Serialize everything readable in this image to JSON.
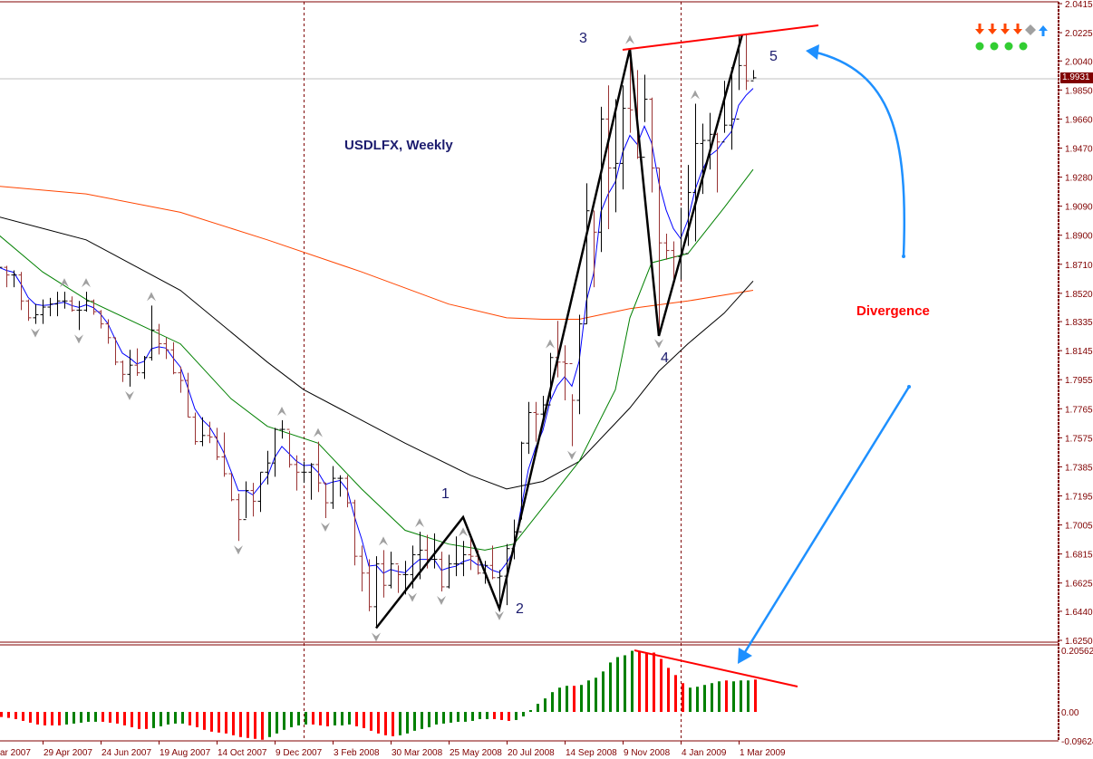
{
  "chart_data": {
    "type": "ohlc",
    "title": "USDLFX, Weekly",
    "annotation": "Divergence",
    "current_price": "1.9931",
    "price_range": [
      1.625,
      2.0415
    ],
    "price_ticks": [
      "2.0415",
      "2.0225",
      "2.0040",
      "1.9850",
      "1.9660",
      "1.9470",
      "1.9280",
      "1.9090",
      "1.8900",
      "1.8710",
      "1.8520",
      "1.8335",
      "1.8145",
      "1.7955",
      "1.7765",
      "1.7575",
      "1.7385",
      "1.7195",
      "1.7005",
      "1.6815",
      "1.6625",
      "1.6440",
      "1.6250"
    ],
    "x_labels": [
      {
        "i": 0,
        "label": "ar 2007"
      },
      {
        "i": 6,
        "label": "29 Apr 2007"
      },
      {
        "i": 14,
        "label": "24 Jun 2007"
      },
      {
        "i": 22,
        "label": "19 Aug 2007"
      },
      {
        "i": 30,
        "label": "14 Oct 2007"
      },
      {
        "i": 38,
        "label": "9 Dec 2007"
      },
      {
        "i": 46,
        "label": "3 Feb 2008"
      },
      {
        "i": 54,
        "label": "30 Mar 2008"
      },
      {
        "i": 62,
        "label": "25 May 2008"
      },
      {
        "i": 70,
        "label": "20 Jul 2008"
      },
      {
        "i": 78,
        "label": "14 Sep 2008"
      },
      {
        "i": 86,
        "label": "9 Nov 2008"
      },
      {
        "i": 94,
        "label": "4 Jan 2009"
      },
      {
        "i": 102,
        "label": "1 Mar 2009"
      }
    ],
    "separators": [
      42,
      94
    ],
    "bars": {
      "high": [
        1.872,
        1.87,
        1.867,
        1.866,
        1.848,
        1.845,
        1.848,
        1.849,
        1.853,
        1.853,
        1.85,
        1.847,
        1.853,
        1.848,
        1.841,
        1.835,
        1.823,
        1.808,
        1.815,
        1.816,
        1.811,
        1.844,
        1.832,
        1.823,
        1.82,
        1.804,
        1.8,
        1.774,
        1.771,
        1.768,
        1.764,
        1.761,
        1.734,
        1.721,
        1.729,
        1.728,
        1.735,
        1.749,
        1.764,
        1.769,
        1.762,
        1.746,
        1.742,
        1.741,
        1.755,
        1.728,
        1.739,
        1.733,
        1.733,
        1.717,
        1.687,
        1.678,
        1.68,
        1.684,
        1.683,
        1.674,
        1.677,
        1.687,
        1.696,
        1.694,
        1.695,
        1.683,
        1.681,
        1.693,
        1.69,
        1.693,
        1.684,
        1.677,
        1.687,
        1.671,
        1.688,
        1.704,
        1.755,
        1.781,
        1.781,
        1.785,
        1.813,
        1.834,
        1.818,
        1.786,
        1.838,
        1.924,
        1.906,
        1.974,
        1.988,
        1.979,
        1.988,
        2.012,
        1.998,
        1.995,
        1.98,
        1.934,
        1.891,
        1.886,
        1.908,
        1.936,
        1.976,
        1.963,
        1.97,
        1.957,
        1.991,
        2.0,
        2.021,
        2.022,
        1.998
      ],
      "low": [
        1.864,
        1.856,
        1.856,
        1.841,
        1.834,
        1.832,
        1.832,
        1.837,
        1.837,
        1.842,
        1.84,
        1.828,
        1.84,
        1.838,
        1.829,
        1.819,
        1.805,
        1.794,
        1.791,
        1.798,
        1.796,
        1.808,
        1.812,
        1.809,
        1.799,
        1.787,
        1.771,
        1.753,
        1.752,
        1.754,
        1.743,
        1.732,
        1.716,
        1.69,
        1.705,
        1.706,
        1.709,
        1.727,
        1.732,
        1.757,
        1.738,
        1.723,
        1.728,
        1.717,
        1.722,
        1.705,
        1.711,
        1.719,
        1.712,
        1.674,
        1.657,
        1.644,
        1.633,
        1.653,
        1.659,
        1.656,
        1.655,
        1.659,
        1.665,
        1.672,
        1.672,
        1.657,
        1.659,
        1.667,
        1.667,
        1.671,
        1.668,
        1.662,
        1.665,
        1.647,
        1.648,
        1.678,
        1.704,
        1.747,
        1.755,
        1.767,
        1.783,
        1.797,
        1.782,
        1.752,
        1.773,
        1.832,
        1.856,
        1.879,
        1.894,
        1.905,
        1.92,
        1.957,
        1.94,
        1.964,
        1.918,
        1.825,
        1.874,
        1.86,
        1.861,
        1.883,
        1.886,
        1.917,
        1.933,
        1.918,
        1.957,
        1.946,
        1.985,
        1.985,
        1.992
      ],
      "close": [
        1.869,
        1.864,
        1.864,
        1.847,
        1.836,
        1.838,
        1.843,
        1.845,
        1.847,
        1.847,
        1.841,
        1.841,
        1.847,
        1.84,
        1.832,
        1.823,
        1.807,
        1.799,
        1.805,
        1.8,
        1.81,
        1.828,
        1.819,
        1.815,
        1.8,
        1.795,
        1.771,
        1.755,
        1.759,
        1.758,
        1.745,
        1.734,
        1.717,
        1.704,
        1.723,
        1.716,
        1.735,
        1.741,
        1.763,
        1.763,
        1.74,
        1.735,
        1.735,
        1.74,
        1.728,
        1.715,
        1.731,
        1.731,
        1.715,
        1.68,
        1.669,
        1.647,
        1.675,
        1.661,
        1.675,
        1.668,
        1.668,
        1.681,
        1.684,
        1.678,
        1.678,
        1.66,
        1.675,
        1.675,
        1.681,
        1.68,
        1.669,
        1.674,
        1.666,
        1.667,
        1.685,
        1.696,
        1.754,
        1.774,
        1.773,
        1.779,
        1.81,
        1.807,
        1.806,
        1.782,
        1.832,
        1.906,
        1.892,
        1.966,
        1.934,
        1.937,
        1.973,
        1.972,
        1.941,
        1.979,
        1.934,
        1.885,
        1.88,
        1.876,
        1.878,
        1.918,
        1.95,
        1.952,
        1.956,
        1.951,
        1.962,
        1.966,
        2.001,
        1.991,
        1.993
      ]
    },
    "moving_averages": {
      "orange": [
        [
          0,
          1.922
        ],
        [
          12,
          1.917
        ],
        [
          25,
          1.905
        ],
        [
          37,
          1.887
        ],
        [
          50,
          1.866
        ],
        [
          62,
          1.845
        ],
        [
          70,
          1.836
        ],
        [
          75,
          1.835
        ],
        [
          80,
          1.835
        ],
        [
          87,
          1.842
        ],
        [
          95,
          1.847
        ],
        [
          104,
          1.854
        ]
      ],
      "black": [
        [
          0,
          1.902
        ],
        [
          12,
          1.887
        ],
        [
          25,
          1.854
        ],
        [
          37,
          1.807
        ],
        [
          42,
          1.789
        ],
        [
          56,
          1.754
        ],
        [
          65,
          1.733
        ],
        [
          70,
          1.724
        ],
        [
          75,
          1.729
        ],
        [
          80,
          1.742
        ],
        [
          87,
          1.777
        ],
        [
          91,
          1.801
        ],
        [
          95,
          1.819
        ],
        [
          100,
          1.839
        ],
        [
          104,
          1.86
        ]
      ],
      "green": [
        [
          0,
          1.89
        ],
        [
          6,
          1.866
        ],
        [
          12,
          1.848
        ],
        [
          25,
          1.819
        ],
        [
          32,
          1.783
        ],
        [
          37,
          1.765
        ],
        [
          44,
          1.754
        ],
        [
          50,
          1.724
        ],
        [
          56,
          1.697
        ],
        [
          62,
          1.688
        ],
        [
          67,
          1.684
        ],
        [
          71,
          1.688
        ],
        [
          75,
          1.712
        ],
        [
          80,
          1.742
        ],
        [
          85,
          1.789
        ],
        [
          87,
          1.836
        ],
        [
          90,
          1.872
        ],
        [
          95,
          1.878
        ],
        [
          100,
          1.908
        ],
        [
          104,
          1.933
        ]
      ],
      "blue_ema_period": 4
    },
    "fractals": {
      "up": [
        9,
        12,
        21,
        39,
        44,
        53,
        58,
        64,
        76,
        87,
        96
      ],
      "down": [
        5,
        11,
        18,
        33,
        45,
        52,
        57,
        61,
        69,
        79,
        91
      ]
    },
    "waves": [
      {
        "label": "",
        "i": 52,
        "p": 1.633
      },
      {
        "label": "1",
        "i": 64,
        "p": 1.7056
      },
      {
        "label": "2",
        "i": 69,
        "p": 1.6457
      },
      {
        "label": "3",
        "i": 87,
        "p": 2.0119
      },
      {
        "label": "4",
        "i": 91,
        "p": 1.8241
      },
      {
        "label": "5",
        "i": 102.5,
        "p": 2.0214
      }
    ],
    "price_trendline": [
      [
        86,
        2.0113
      ],
      [
        113,
        2.0273
      ]
    ],
    "oscillator": {
      "range": [
        -0.09624,
        0.20562
      ],
      "ticks": [
        "0.20562",
        "0.00",
        "-0.09624"
      ],
      "tick_values": [
        0.20562,
        0,
        -0.09624
      ],
      "values": [
        -0.017,
        -0.02,
        -0.024,
        -0.03,
        -0.036,
        -0.042,
        -0.045,
        -0.045,
        -0.045,
        -0.042,
        -0.039,
        -0.036,
        -0.033,
        -0.033,
        -0.033,
        -0.036,
        -0.039,
        -0.045,
        -0.051,
        -0.057,
        -0.057,
        -0.054,
        -0.048,
        -0.042,
        -0.039,
        -0.039,
        -0.045,
        -0.051,
        -0.06,
        -0.066,
        -0.069,
        -0.072,
        -0.078,
        -0.084,
        -0.087,
        -0.09,
        -0.093,
        -0.084,
        -0.072,
        -0.06,
        -0.051,
        -0.045,
        -0.042,
        -0.042,
        -0.045,
        -0.048,
        -0.045,
        -0.045,
        -0.042,
        -0.048,
        -0.054,
        -0.063,
        -0.072,
        -0.078,
        -0.081,
        -0.078,
        -0.072,
        -0.063,
        -0.057,
        -0.051,
        -0.042,
        -0.039,
        -0.036,
        -0.033,
        -0.033,
        -0.03,
        -0.024,
        -0.024,
        -0.024,
        -0.027,
        -0.03,
        -0.027,
        -0.015,
        0.006,
        0.027,
        0.045,
        0.066,
        0.081,
        0.087,
        0.087,
        0.09,
        0.105,
        0.114,
        0.135,
        0.165,
        0.183,
        0.189,
        0.204,
        0.204,
        0.198,
        0.198,
        0.177,
        0.147,
        0.123,
        0.096,
        0.081,
        0.084,
        0.09,
        0.096,
        0.102,
        0.105,
        0.102,
        0.105,
        0.105,
        0.108
      ],
      "colors": "rrrrrrrrrgggggrrrrrrrgggggrrrrrrrrrrrggggggrrrgggrrrrrrgggggggggggggrrrggggggggrggggggggrrrrrrrgggggrggg",
      "trendline": [
        [
          87.5,
          0.2056
        ],
        [
          110,
          0.0847
        ]
      ]
    }
  },
  "signals": {
    "arrows": [
      "down",
      "down",
      "down",
      "down",
      "neutral",
      "up"
    ],
    "dots": 4
  },
  "colors": {
    "axis": "#800000",
    "up_bar": "#000000",
    "down_bar": "#993333",
    "hist_up": "#008000",
    "hist_down": "#ff0000",
    "blue_ma": "#0000ff",
    "green_ma": "#008000",
    "black_ma": "#000000",
    "orange_ma": "#ff4500",
    "annotation_arrow": "#1e90ff",
    "trendline": "#ff0000",
    "signal_down": "#ff4500",
    "signal_up": "#1e90ff",
    "signal_neutral": "#a0a0a0",
    "signal_dot": "#32cd32"
  }
}
